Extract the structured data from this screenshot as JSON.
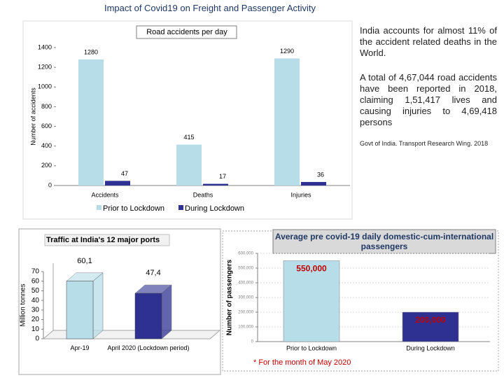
{
  "title": "Impact of Covid19 on Freight and Passenger Activity",
  "notes": [
    "India accounts for almost 11% of the accident related deaths in the World.",
    "A total of 4,67,044 road accidents have been reported in 2018, claiming 1,51,417 lives and causing injuries to 4,69,418 persons",
    "Govt of India. Transport Research Wing. 2018"
  ],
  "chart_data": [
    {
      "type": "bar",
      "title": "Road accidents per day",
      "y_label": "Number of accidents",
      "categories": [
        "Accidents",
        "Deaths",
        "Injuries"
      ],
      "series": [
        {
          "name": "Prior to Lockdown",
          "color": "#b7dde8",
          "values": [
            1280,
            415,
            1290
          ]
        },
        {
          "name": "During Lockdown",
          "color": "#2e3192",
          "values": [
            47,
            17,
            36
          ]
        }
      ],
      "ylim": [
        0,
        1400
      ],
      "yticks": [
        0,
        200,
        400,
        600,
        800,
        1000,
        1200,
        1400
      ],
      "legend": "bottom"
    },
    {
      "type": "bar3d",
      "title": "Traffic at India's 12 major ports",
      "y_label": "Million tonnes",
      "categories": [
        "Apr-19",
        "April 2020 (Lockdown period)"
      ],
      "values": [
        60.1,
        47.4
      ],
      "value_labels": [
        "60,1",
        "47,4"
      ],
      "colors": [
        "#b7dde8",
        "#2e3192"
      ],
      "ylim": [
        0,
        70
      ],
      "yticks": [
        0,
        10,
        20,
        30,
        40,
        50,
        60,
        70
      ]
    },
    {
      "type": "bar",
      "title": "Average pre covid-19 daily domestic-cum-international passengers",
      "y_label": "Number of passengers",
      "categories": [
        "Prior to Lockdown",
        "During Lockdown"
      ],
      "values": [
        550000,
        200000
      ],
      "value_labels": [
        "550,000",
        "200,000"
      ],
      "colors": [
        "#b7dde8",
        "#2e3192"
      ],
      "ylim": [
        0,
        600000
      ],
      "yticks": [
        0,
        {
          "value": 100000,
          "label": "100,000"
        },
        {
          "value": 200000,
          "label": "200,000"
        },
        {
          "value": 300000,
          "label": "300,000"
        },
        {
          "value": 400000,
          "label": "400,000"
        },
        {
          "value": 500000,
          "label": "500,000"
        },
        {
          "value": 600000,
          "label": "600,000"
        }
      ],
      "grid": true,
      "footnote": "* For the month of May 2020"
    }
  ]
}
